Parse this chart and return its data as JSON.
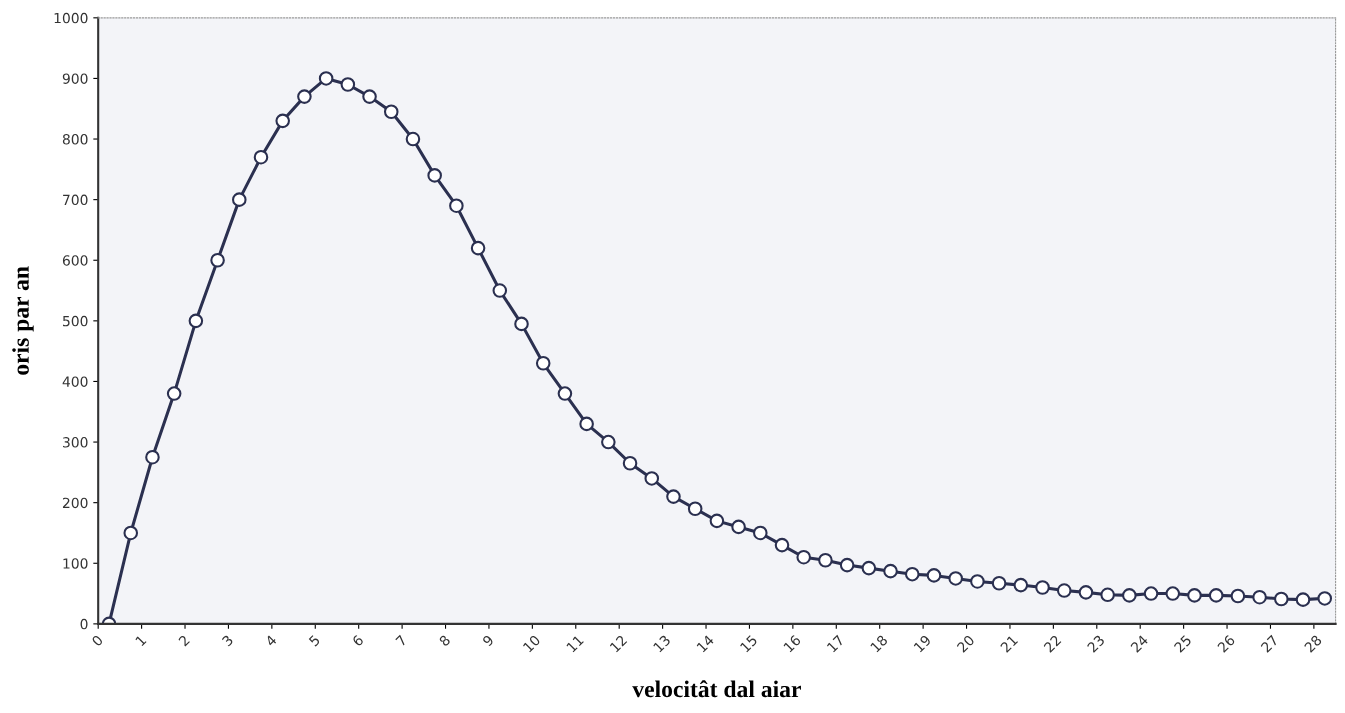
{
  "chart_data": {
    "type": "line",
    "xlabel": "velocitât dal aiar",
    "ylabel": "oris par an",
    "x": [
      0.25,
      0.75,
      1.25,
      1.75,
      2.25,
      2.75,
      3.25,
      3.75,
      4.25,
      4.75,
      5.25,
      5.75,
      6.25,
      6.75,
      7.25,
      7.75,
      8.25,
      8.75,
      9.25,
      9.75,
      10.25,
      10.75,
      11.25,
      11.75,
      12.25,
      12.75,
      13.25,
      13.75,
      14.25,
      14.75,
      15.25,
      15.75,
      16.25,
      16.75,
      17.25,
      17.75,
      18.25,
      18.75,
      19.25,
      19.75,
      20.25,
      20.75,
      21.25,
      21.75,
      22.25,
      22.75,
      23.25,
      23.75,
      24.25,
      24.75,
      25.25,
      25.75,
      26.25,
      26.75,
      27.25,
      27.75,
      28.25
    ],
    "series": [
      {
        "color": "#2b3050",
        "values": [
          0,
          150,
          275,
          380,
          500,
          600,
          700,
          770,
          830,
          870,
          900,
          890,
          870,
          845,
          800,
          740,
          690,
          620,
          550,
          495,
          430,
          380,
          330,
          300,
          265,
          240,
          210,
          190,
          170,
          160,
          150,
          130,
          110,
          105,
          97,
          92,
          87,
          82,
          80,
          75,
          70,
          67,
          64,
          60,
          55,
          52,
          48,
          47,
          50,
          50,
          47,
          47,
          46,
          44,
          41,
          40,
          42
        ]
      }
    ],
    "xlim": [
      0,
      28.5
    ],
    "xticks": [
      0,
      1,
      2,
      3,
      4,
      5,
      6,
      7,
      8,
      9,
      10,
      11,
      12,
      13,
      14,
      15,
      16,
      17,
      18,
      19,
      20,
      21,
      22,
      23,
      24,
      25,
      26,
      27,
      28
    ],
    "ylim": [
      0,
      1000
    ],
    "yticks": [
      0,
      100,
      200,
      300,
      400,
      500,
      600,
      700,
      800,
      900,
      1000
    ],
    "grid": false,
    "legend": false,
    "marker": "circle",
    "line_style": "solid"
  }
}
